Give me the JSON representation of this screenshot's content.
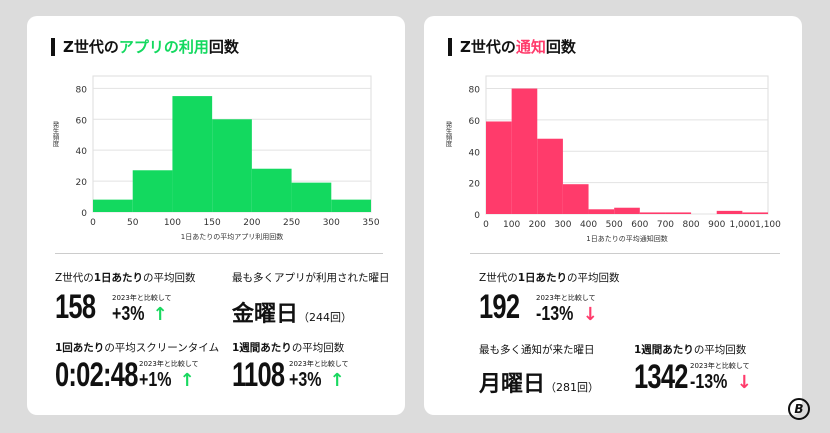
{
  "colors": {
    "green": "#13d95f",
    "pink": "#ff3b6b"
  },
  "left": {
    "title_pre": "Z世代の",
    "title_hl": "アプリの利用",
    "title_post": "回数",
    "stat1": {
      "label_a": "Z世代の",
      "label_b": "1日あたり",
      "label_c": "の平均回数",
      "value": "158",
      "compare": "2023年と比較して",
      "change": "+3%",
      "arrow": "↑"
    },
    "stat2": {
      "label": "最も多くアプリが利用された曜日",
      "value": "金曜日",
      "count": "（244回）"
    },
    "stat3": {
      "label_b": "1回あたり",
      "label_c": "の平均スクリーンタイム",
      "value": "0:02:48",
      "compare": "2023年と比較して",
      "change": "+1%",
      "arrow": "↑"
    },
    "stat4": {
      "label_b": "1週間あたり",
      "label_c": "の平均回数",
      "value": "1108",
      "compare": "2023年と比較して",
      "change": "+3%",
      "arrow": "↑"
    }
  },
  "right": {
    "title_pre": "Z世代の",
    "title_hl": "通知",
    "title_post": "回数",
    "stat1": {
      "label_a": "Z世代の",
      "label_b": "1日あたり",
      "label_c": "の平均回数",
      "value": "192",
      "compare": "2023年と比較して",
      "change": "-13%",
      "arrow": "↓"
    },
    "stat2": {
      "label": "最も多く通知が来た曜日",
      "value": "月曜日",
      "count": "（281回）"
    },
    "stat3": {
      "label_b": "1週間あたり",
      "label_c": "の平均回数",
      "value": "1342",
      "compare": "2023年と比較して",
      "change": "-13%",
      "arrow": "↓"
    }
  },
  "logo": "B",
  "chart_data": [
    {
      "type": "bar",
      "title": "Z世代のアプリの利用回数",
      "xlabel": "1日あたりの平均アプリ利用回数",
      "ylabel": "発生頻度",
      "bin_edges": [
        0,
        50,
        100,
        150,
        200,
        250,
        300,
        350
      ],
      "values": [
        8,
        27,
        75,
        60,
        28,
        19,
        8
      ],
      "x_ticks": [
        "0",
        "50",
        "100",
        "150",
        "200",
        "250",
        "300",
        "350"
      ],
      "y_ticks": [
        "0",
        "20",
        "40",
        "60",
        "80"
      ],
      "xlim": [
        0,
        350
      ],
      "ylim": [
        0,
        88
      ],
      "grid": true,
      "color": "#13d95f"
    },
    {
      "type": "bar",
      "title": "Z世代の通知回数",
      "xlabel": "1日あたりの平均通知回数",
      "ylabel": "発生頻度",
      "bin_edges": [
        0,
        100,
        200,
        300,
        400,
        500,
        600,
        700,
        800,
        900,
        1000,
        1100
      ],
      "values": [
        59,
        80,
        48,
        19,
        3,
        4,
        1,
        1,
        0,
        2,
        1
      ],
      "x_ticks": [
        "0",
        "100",
        "200",
        "300",
        "400",
        "500",
        "600",
        "700",
        "800",
        "900",
        "1,000",
        "1,100"
      ],
      "y_ticks": [
        "0",
        "20",
        "40",
        "60",
        "80"
      ],
      "xlim": [
        0,
        1100
      ],
      "ylim": [
        0,
        88
      ],
      "grid": true,
      "color": "#ff3b6b"
    }
  ]
}
